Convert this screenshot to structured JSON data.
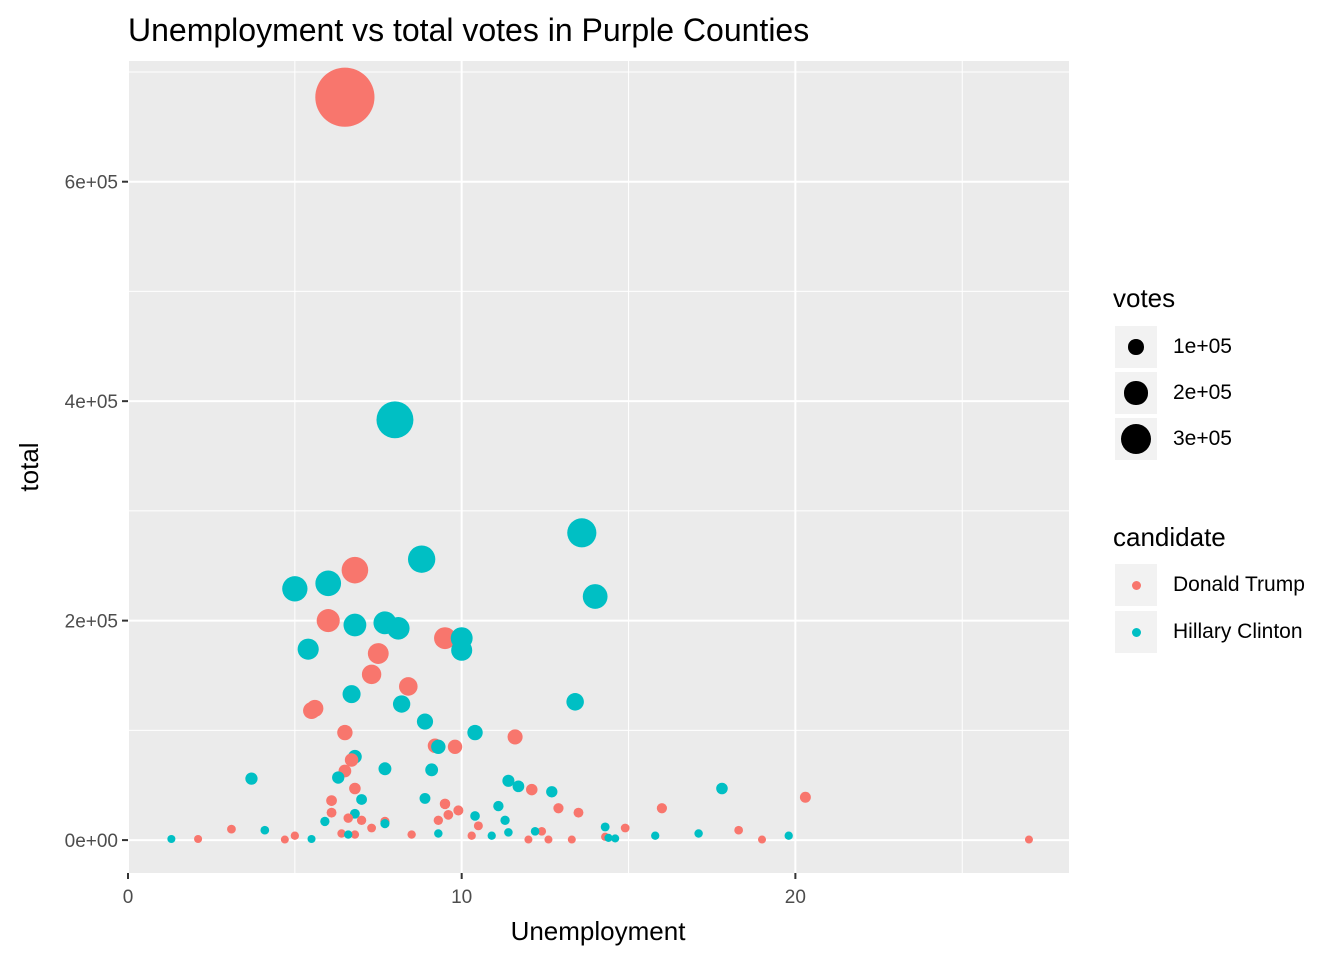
{
  "chart_data": {
    "type": "scatter",
    "title": "Unemployment vs total votes in Purple Counties",
    "xlabel": "Unemployment",
    "ylabel": "total",
    "xlim": [
      0,
      28.2
    ],
    "ylim": [
      -30000,
      710000
    ],
    "x_ticks": [
      0,
      10,
      20
    ],
    "x_tick_labels": [
      "0",
      "10",
      "20"
    ],
    "y_ticks": [
      0,
      200000,
      400000,
      600000
    ],
    "y_tick_labels": [
      "0e+00",
      "2e+05",
      "4e+05",
      "6e+05"
    ],
    "grid": true,
    "legend_position": "right",
    "size_legend": {
      "title": "votes",
      "entries": [
        {
          "label": "1e+05",
          "value": 100000
        },
        {
          "label": "2e+05",
          "value": 200000
        },
        {
          "label": "3e+05",
          "value": 300000
        }
      ]
    },
    "color_legend": {
      "title": "candidate",
      "entries": [
        {
          "label": "Donald Trump",
          "color": "#F8766D"
        },
        {
          "label": "Hillary Clinton",
          "color": "#00BFC4"
        }
      ]
    },
    "series": [
      {
        "name": "Donald Trump",
        "color": "#F8766D",
        "points": [
          [
            6.5,
            677000
          ],
          [
            6.8,
            246000
          ],
          [
            6.0,
            200000
          ],
          [
            9.5,
            184000
          ],
          [
            7.5,
            170000
          ],
          [
            7.3,
            151000
          ],
          [
            8.4,
            140000
          ],
          [
            5.6,
            120000
          ],
          [
            5.5,
            118000
          ],
          [
            6.5,
            98000
          ],
          [
            11.6,
            94000
          ],
          [
            9.2,
            86000
          ],
          [
            9.8,
            85000
          ],
          [
            6.7,
            73000
          ],
          [
            6.5,
            63000
          ],
          [
            6.8,
            47000
          ],
          [
            12.1,
            46000
          ],
          [
            20.3,
            39000
          ],
          [
            6.1,
            36000
          ],
          [
            9.5,
            33000
          ],
          [
            16.0,
            29000
          ],
          [
            12.9,
            29000
          ],
          [
            9.9,
            27000
          ],
          [
            13.5,
            25000
          ],
          [
            6.1,
            25000
          ],
          [
            9.6,
            23000
          ],
          [
            6.6,
            20000
          ],
          [
            7.0,
            18000
          ],
          [
            9.3,
            18000
          ],
          [
            7.7,
            17000
          ],
          [
            7.3,
            11000
          ],
          [
            3.1,
            10000
          ],
          [
            14.9,
            11000
          ],
          [
            10.5,
            13000
          ],
          [
            18.3,
            9000
          ],
          [
            12.4,
            8000
          ],
          [
            6.4,
            6000
          ],
          [
            6.8,
            5000
          ],
          [
            8.5,
            5000
          ],
          [
            5.0,
            4000
          ],
          [
            10.3,
            4000
          ],
          [
            14.3,
            3000
          ],
          [
            2.1,
            1000
          ],
          [
            4.7,
            500
          ],
          [
            12.0,
            500
          ],
          [
            12.6,
            500
          ],
          [
            13.3,
            500
          ],
          [
            19.0,
            500
          ],
          [
            27.0,
            500
          ]
        ]
      },
      {
        "name": "Hillary Clinton",
        "color": "#00BFC4",
        "points": [
          [
            8.0,
            383000
          ],
          [
            13.6,
            280000
          ],
          [
            8.8,
            256000
          ],
          [
            6.0,
            234000
          ],
          [
            5.0,
            229000
          ],
          [
            14.0,
            222000
          ],
          [
            7.7,
            198000
          ],
          [
            8.1,
            193000
          ],
          [
            6.8,
            196000
          ],
          [
            10.0,
            184000
          ],
          [
            10.0,
            173000
          ],
          [
            5.4,
            174000
          ],
          [
            6.7,
            133000
          ],
          [
            13.4,
            126000
          ],
          [
            8.2,
            124000
          ],
          [
            8.9,
            108000
          ],
          [
            10.4,
            98000
          ],
          [
            9.3,
            85000
          ],
          [
            6.8,
            76000
          ],
          [
            9.1,
            64000
          ],
          [
            7.7,
            65000
          ],
          [
            6.3,
            57000
          ],
          [
            3.7,
            56000
          ],
          [
            11.4,
            54000
          ],
          [
            11.7,
            49000
          ],
          [
            17.8,
            47000
          ],
          [
            12.7,
            44000
          ],
          [
            7.0,
            37000
          ],
          [
            8.9,
            38000
          ],
          [
            11.1,
            31000
          ],
          [
            10.4,
            22000
          ],
          [
            6.8,
            24000
          ],
          [
            11.3,
            18000
          ],
          [
            5.9,
            17000
          ],
          [
            7.7,
            15000
          ],
          [
            14.3,
            12000
          ],
          [
            4.1,
            9000
          ],
          [
            12.2,
            8000
          ],
          [
            11.4,
            7000
          ],
          [
            17.1,
            6000
          ],
          [
            9.3,
            6000
          ],
          [
            6.6,
            5000
          ],
          [
            10.9,
            4000
          ],
          [
            15.8,
            4000
          ],
          [
            19.8,
            4000
          ],
          [
            14.4,
            2000
          ],
          [
            14.6,
            1500
          ],
          [
            1.3,
            1000
          ],
          [
            5.5,
            1000
          ]
        ]
      }
    ]
  }
}
